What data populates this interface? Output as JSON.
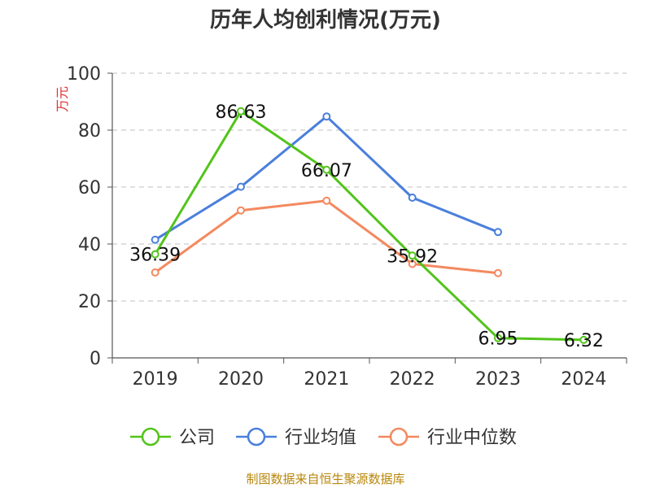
{
  "chart_data": {
    "type": "line",
    "title": "历年人均创利情况(万元)",
    "ylabel": "万元",
    "xlabel": "",
    "categories": [
      "2019",
      "2020",
      "2021",
      "2022",
      "2023",
      "2024"
    ],
    "ylim": [
      0,
      100
    ],
    "yticks": [
      0,
      20,
      40,
      60,
      80,
      100
    ],
    "grid": true,
    "legend_position": "bottom",
    "series": [
      {
        "name": "公司",
        "color": "#52c41a",
        "values": [
          36.39,
          86.63,
          66.07,
          35.92,
          6.95,
          6.32
        ],
        "labels": [
          "36.39",
          "86.63",
          "66.07",
          "35.92",
          "6.95",
          "6.32"
        ]
      },
      {
        "name": "行业均值",
        "color": "#4a7fdc",
        "values": [
          41.5,
          60.1,
          84.8,
          56.3,
          44.2,
          null
        ]
      },
      {
        "name": "行业中位数",
        "color": "#f4895f",
        "values": [
          30.0,
          51.8,
          55.2,
          33.0,
          29.8,
          null
        ]
      }
    ]
  },
  "source_note": "制图数据来自恒生聚源数据库"
}
